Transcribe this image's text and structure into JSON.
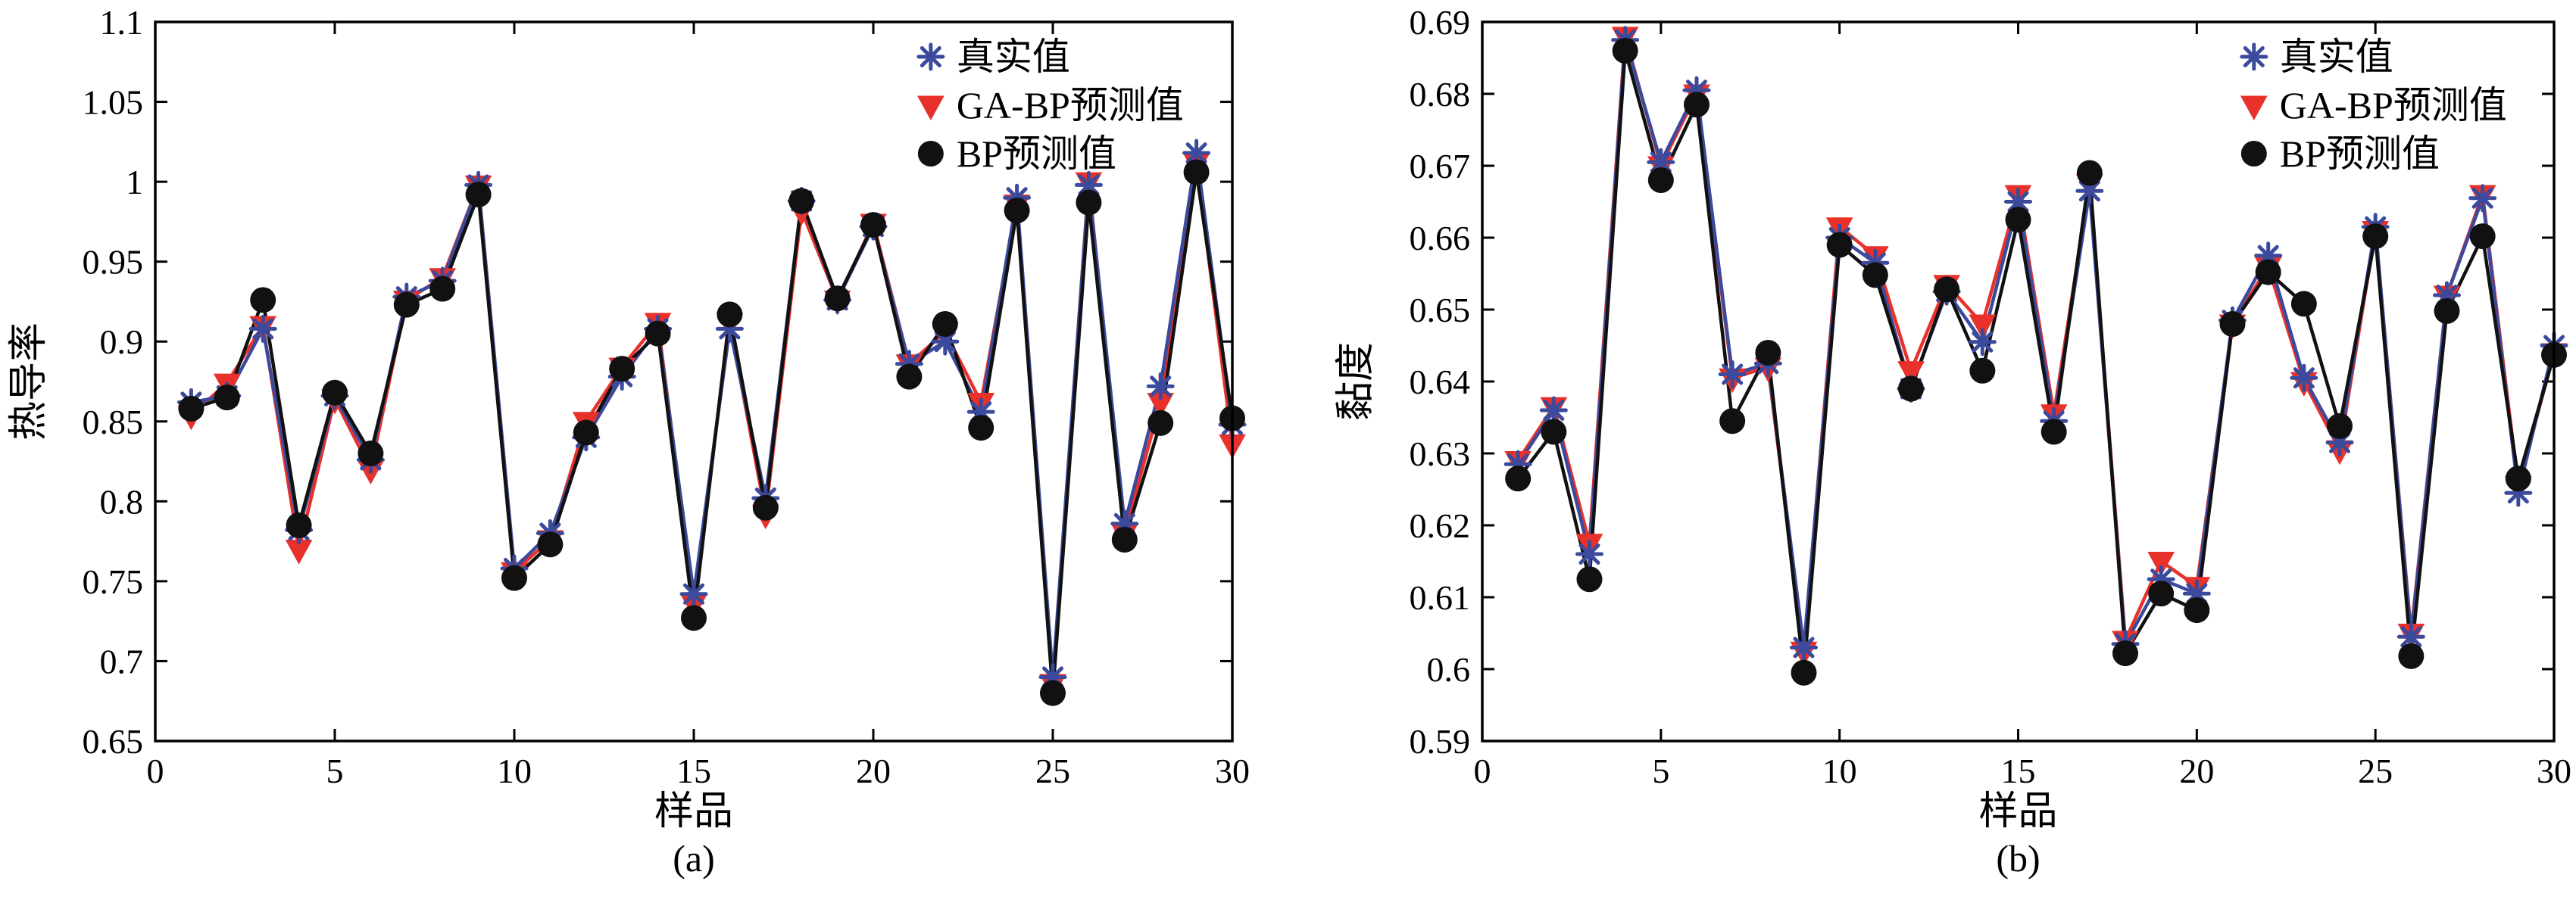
{
  "chart_data": [
    {
      "type": "line",
      "caption": "(a)",
      "xlabel": "样品",
      "ylabel": "热导率",
      "xlim": [
        0,
        30
      ],
      "ylim": [
        0.65,
        1.1
      ],
      "xticks": [
        0,
        5,
        10,
        15,
        20,
        25,
        30
      ],
      "yticks": [
        0.65,
        0.7,
        0.75,
        0.8,
        0.85,
        0.9,
        0.95,
        1.0,
        1.05,
        1.1
      ],
      "ytick_labels": [
        "0.65",
        "0.7",
        "0.75",
        "0.8",
        "0.85",
        "0.9",
        "0.95",
        "1",
        "1.05",
        "1.1"
      ],
      "x": [
        1,
        2,
        3,
        4,
        5,
        6,
        7,
        8,
        9,
        10,
        11,
        12,
        13,
        14,
        15,
        16,
        17,
        18,
        19,
        20,
        21,
        22,
        23,
        24,
        25,
        26,
        27,
        28,
        29,
        30
      ],
      "legend_position": "top-right",
      "series": [
        {
          "name": "真实值",
          "marker": "asterisk",
          "color": "#3b4a9c",
          "values": [
            0.862,
            0.866,
            0.908,
            0.782,
            0.866,
            0.826,
            0.928,
            0.938,
            0.998,
            0.758,
            0.78,
            0.84,
            0.878,
            0.908,
            0.742,
            0.908,
            0.802,
            0.988,
            0.926,
            0.972,
            0.886,
            0.9,
            0.856,
            0.99,
            0.69,
            0.998,
            0.786,
            0.872,
            1.018,
            0.848
          ]
        },
        {
          "name": "GA-BP预测值",
          "marker": "triangle-down",
          "color": "#e8312a",
          "values": [
            0.854,
            0.874,
            0.91,
            0.77,
            0.864,
            0.82,
            0.926,
            0.94,
            0.998,
            0.756,
            0.776,
            0.85,
            0.884,
            0.912,
            0.736,
            0.912,
            0.792,
            0.982,
            0.926,
            0.974,
            0.886,
            0.906,
            0.862,
            0.986,
            0.686,
            1.0,
            0.78,
            0.862,
            1.012,
            0.836
          ]
        },
        {
          "name": "BP预测值",
          "marker": "circle",
          "color": "#111111",
          "values": [
            0.858,
            0.865,
            0.926,
            0.785,
            0.868,
            0.83,
            0.923,
            0.933,
            0.992,
            0.752,
            0.773,
            0.843,
            0.883,
            0.905,
            0.727,
            0.917,
            0.796,
            0.988,
            0.927,
            0.973,
            0.878,
            0.911,
            0.846,
            0.982,
            0.68,
            0.987,
            0.776,
            0.849,
            1.006,
            0.852
          ]
        }
      ]
    },
    {
      "type": "line",
      "caption": "(b)",
      "xlabel": "样品",
      "ylabel": "黏度",
      "xlim": [
        0,
        30
      ],
      "ylim": [
        0.59,
        0.69
      ],
      "xticks": [
        0,
        5,
        10,
        15,
        20,
        25,
        30
      ],
      "yticks": [
        0.59,
        0.6,
        0.61,
        0.62,
        0.63,
        0.64,
        0.65,
        0.66,
        0.67,
        0.68,
        0.69
      ],
      "ytick_labels": [
        "0.59",
        "0.6",
        "0.61",
        "0.62",
        "0.63",
        "0.64",
        "0.65",
        "0.66",
        "0.67",
        "0.68",
        "0.69"
      ],
      "x": [
        1,
        2,
        3,
        4,
        5,
        6,
        7,
        8,
        9,
        10,
        11,
        12,
        13,
        14,
        15,
        16,
        17,
        18,
        19,
        20,
        21,
        22,
        23,
        24,
        25,
        26,
        27,
        28,
        29,
        30
      ],
      "legend_position": "top-right",
      "series": [
        {
          "name": "真实值",
          "marker": "asterisk",
          "color": "#3b4a9c",
          "values": [
            0.6285,
            0.636,
            0.616,
            0.6875,
            0.6705,
            0.6805,
            0.641,
            0.6425,
            0.603,
            0.66,
            0.6565,
            0.639,
            0.6525,
            0.6455,
            0.665,
            0.6345,
            0.6665,
            0.6035,
            0.6125,
            0.6105,
            0.6485,
            0.6575,
            0.6405,
            0.6315,
            0.6615,
            0.6045,
            0.652,
            0.6655,
            0.6245,
            0.645
          ]
        },
        {
          "name": "GA-BP预测值",
          "marker": "triangle-down",
          "color": "#e8312a",
          "values": [
            0.629,
            0.6365,
            0.6175,
            0.688,
            0.67,
            0.68,
            0.6405,
            0.642,
            0.6025,
            0.6615,
            0.6575,
            0.6415,
            0.6535,
            0.648,
            0.666,
            0.6355,
            0.6675,
            0.604,
            0.615,
            0.6115,
            0.648,
            0.656,
            0.64,
            0.6305,
            0.661,
            0.605,
            0.652,
            0.666,
            0.6255,
            0.644
          ]
        },
        {
          "name": "BP预测值",
          "marker": "circle",
          "color": "#111111",
          "values": [
            0.6265,
            0.633,
            0.6125,
            0.686,
            0.668,
            0.6785,
            0.6345,
            0.644,
            0.5995,
            0.659,
            0.6548,
            0.639,
            0.6528,
            0.6415,
            0.6625,
            0.633,
            0.669,
            0.6022,
            0.6105,
            0.6082,
            0.648,
            0.6552,
            0.6508,
            0.6338,
            0.6602,
            0.6018,
            0.6498,
            0.6602,
            0.6265,
            0.6437
          ]
        }
      ]
    }
  ]
}
